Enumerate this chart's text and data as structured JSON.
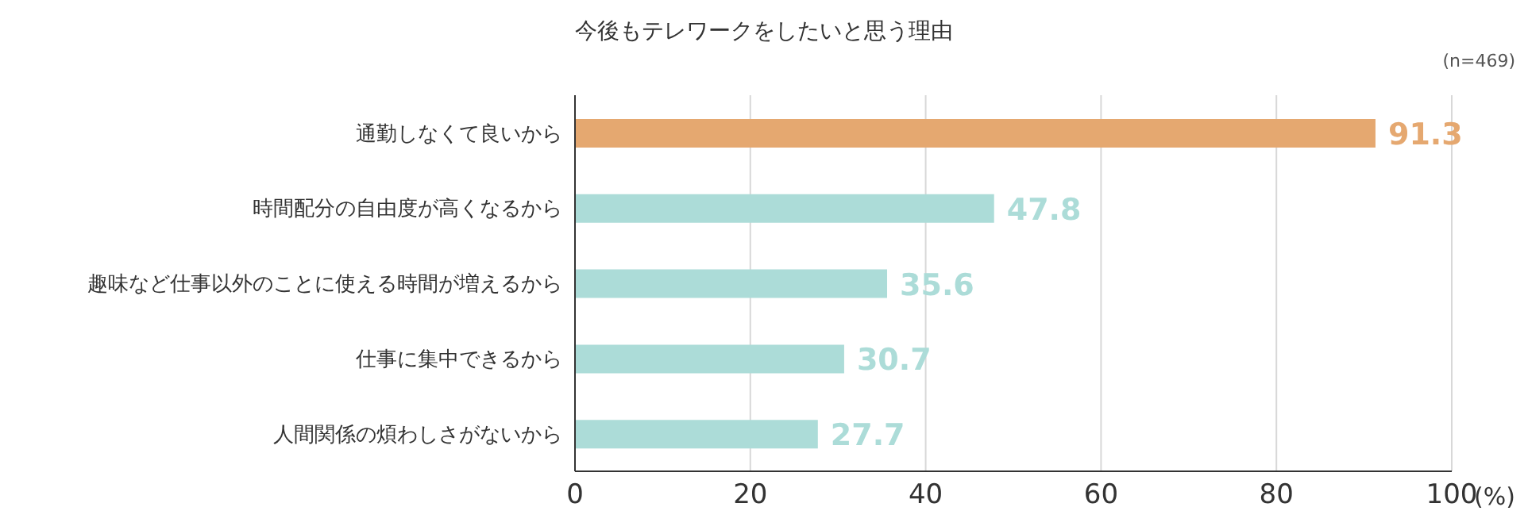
{
  "chart_data": {
    "type": "bar",
    "orientation": "horizontal",
    "title": "今後もテレワークをしたいと思う理由",
    "categories": [
      "通勤しなくて良いから",
      "時間配分の自由度が高くなるから",
      "趣味など仕事以外のことに使える時間が増えるから",
      "仕事に集中できるから",
      "人間関係の煩わしさがないから"
    ],
    "values": [
      91.3,
      47.8,
      35.6,
      30.7,
      27.7
    ],
    "colors": [
      "#e5a870",
      "#acdcd8",
      "#acdcd8",
      "#acdcd8",
      "#acdcd8"
    ],
    "xlim": [
      0,
      100
    ],
    "xticks": [
      0,
      20,
      40,
      60,
      80,
      100
    ],
    "xlabel": "(%)",
    "grid": "x",
    "data_labels": true,
    "annotations": [
      "(n=469)"
    ]
  }
}
